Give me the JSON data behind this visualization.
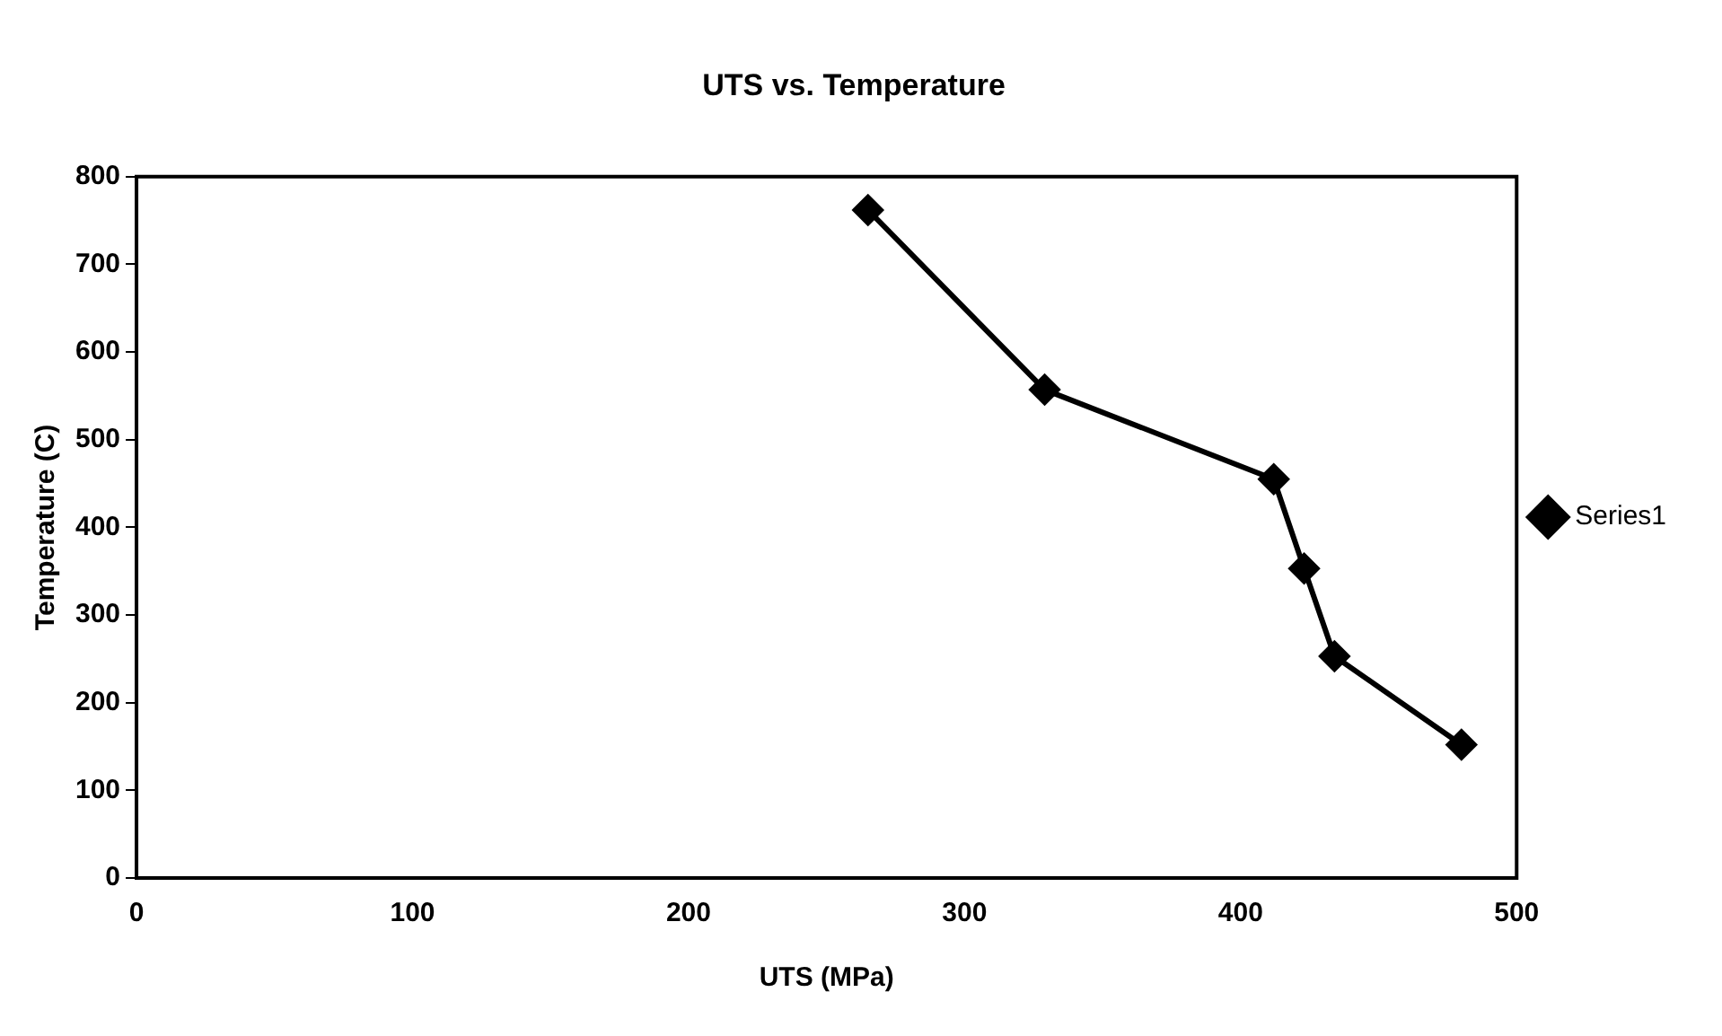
{
  "chart_data": {
    "type": "line",
    "title": "UTS vs. Temperature",
    "xlabel": "UTS (MPa)",
    "ylabel": "Temperature (C)",
    "series": [
      {
        "name": "Series1",
        "color": "#000000",
        "x": [
          265,
          329,
          412,
          423,
          434,
          480
        ],
        "values": [
          762,
          557,
          455,
          353,
          253,
          152
        ]
      }
    ],
    "xlim": [
      0,
      500
    ],
    "xticks": [
      0,
      100,
      200,
      300,
      400,
      500
    ],
    "ylim": [
      0,
      800
    ],
    "yticks": [
      0,
      100,
      200,
      300,
      400,
      500,
      600,
      700,
      800
    ],
    "grid": false,
    "legend": "right",
    "marker": "diamond",
    "line_style": "solid"
  }
}
